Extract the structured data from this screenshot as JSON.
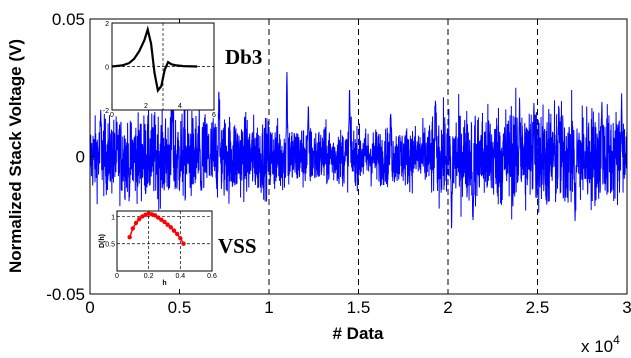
{
  "chart_data": {
    "type": "line",
    "title": "",
    "xlabel": "# Data",
    "ylabel": "Normalized Stack Voltage (V)",
    "x_multiplier_label": "x 10",
    "x_multiplier_exp": "4",
    "xlim": [
      0,
      3
    ],
    "ylim": [
      -0.05,
      0.05
    ],
    "x_ticks": [
      0,
      0.5,
      1,
      1.5,
      2,
      2.5,
      3
    ],
    "x_tick_labels": [
      "0",
      "0.5",
      "1",
      "1.5",
      "2",
      "2.5",
      "3"
    ],
    "y_ticks": [
      -0.05,
      0,
      0.05
    ],
    "y_tick_labels": [
      "-0.05",
      "0",
      "0.05"
    ],
    "vertical_dashed_lines": [
      1,
      1.5,
      2,
      2.5
    ],
    "series": [
      {
        "color": "#0000ff",
        "num_points": 30000,
        "description": "noisy voltage signal oscillating roughly between -0.02 and +0.02 V with spikes up to about +0.033 and down to about -0.028"
      }
    ],
    "spikes": [
      {
        "x": 0.06,
        "y": 0.017
      },
      {
        "x": 0.22,
        "y": -0.015
      },
      {
        "x": 0.46,
        "y": 0.021
      },
      {
        "x": 0.62,
        "y": -0.013
      },
      {
        "x": 0.72,
        "y": 0.025
      },
      {
        "x": 1.1,
        "y": 0.033
      },
      {
        "x": 1.22,
        "y": 0.019
      },
      {
        "x": 1.45,
        "y": 0.026
      },
      {
        "x": 1.68,
        "y": 0.017
      },
      {
        "x": 1.93,
        "y": 0.021
      },
      {
        "x": 2.02,
        "y": -0.027
      },
      {
        "x": 2.14,
        "y": -0.025
      },
      {
        "x": 2.4,
        "y": 0.022
      },
      {
        "x": 2.48,
        "y": 0.02
      },
      {
        "x": 2.62,
        "y": 0.018
      },
      {
        "x": 2.71,
        "y": -0.024
      },
      {
        "x": 2.86,
        "y": 0.02
      },
      {
        "x": 2.97,
        "y": 0.023
      }
    ],
    "annotations": [
      "Db3",
      "VSS"
    ],
    "insets": [
      {
        "name": "db3-wavelet",
        "type": "line",
        "xlim": [
          0,
          6
        ],
        "ylim": [
          -2,
          2
        ],
        "x_tick_labels": [
          "0",
          "2",
          "4",
          "6"
        ],
        "y_tick_labels": [
          "-2",
          "0",
          "2"
        ],
        "x": [
          0,
          0.6,
          1.0,
          1.3,
          1.6,
          1.9,
          2.1,
          2.3,
          2.5,
          2.7,
          2.9,
          3.1,
          3.3,
          3.5,
          3.8,
          4.2,
          5.0
        ],
        "y": [
          0,
          0.05,
          0.15,
          0.35,
          0.7,
          1.2,
          1.7,
          1.05,
          -0.3,
          -1.1,
          -0.9,
          -0.15,
          0.2,
          0.1,
          0.05,
          0.02,
          0
        ],
        "color": "#000000"
      },
      {
        "name": "vss-curve",
        "type": "scatter",
        "xlabel": "h",
        "ylabel": "D(h)",
        "xlim": [
          0,
          0.6
        ],
        "ylim": [
          0,
          1.1
        ],
        "x_tick_labels": [
          "0",
          "0.2",
          "0.4",
          "0.6"
        ],
        "y_tick_labels": [
          "0.5",
          "1"
        ],
        "x": [
          0.08,
          0.1,
          0.12,
          0.14,
          0.16,
          0.18,
          0.2,
          0.22,
          0.24,
          0.26,
          0.28,
          0.3,
          0.32,
          0.34,
          0.36,
          0.38,
          0.4,
          0.42
        ],
        "y": [
          0.62,
          0.78,
          0.88,
          0.95,
          1.0,
          1.03,
          1.05,
          1.04,
          1.02,
          0.98,
          0.94,
          0.9,
          0.85,
          0.8,
          0.74,
          0.68,
          0.6,
          0.5
        ],
        "color": "#ff0000"
      }
    ]
  }
}
